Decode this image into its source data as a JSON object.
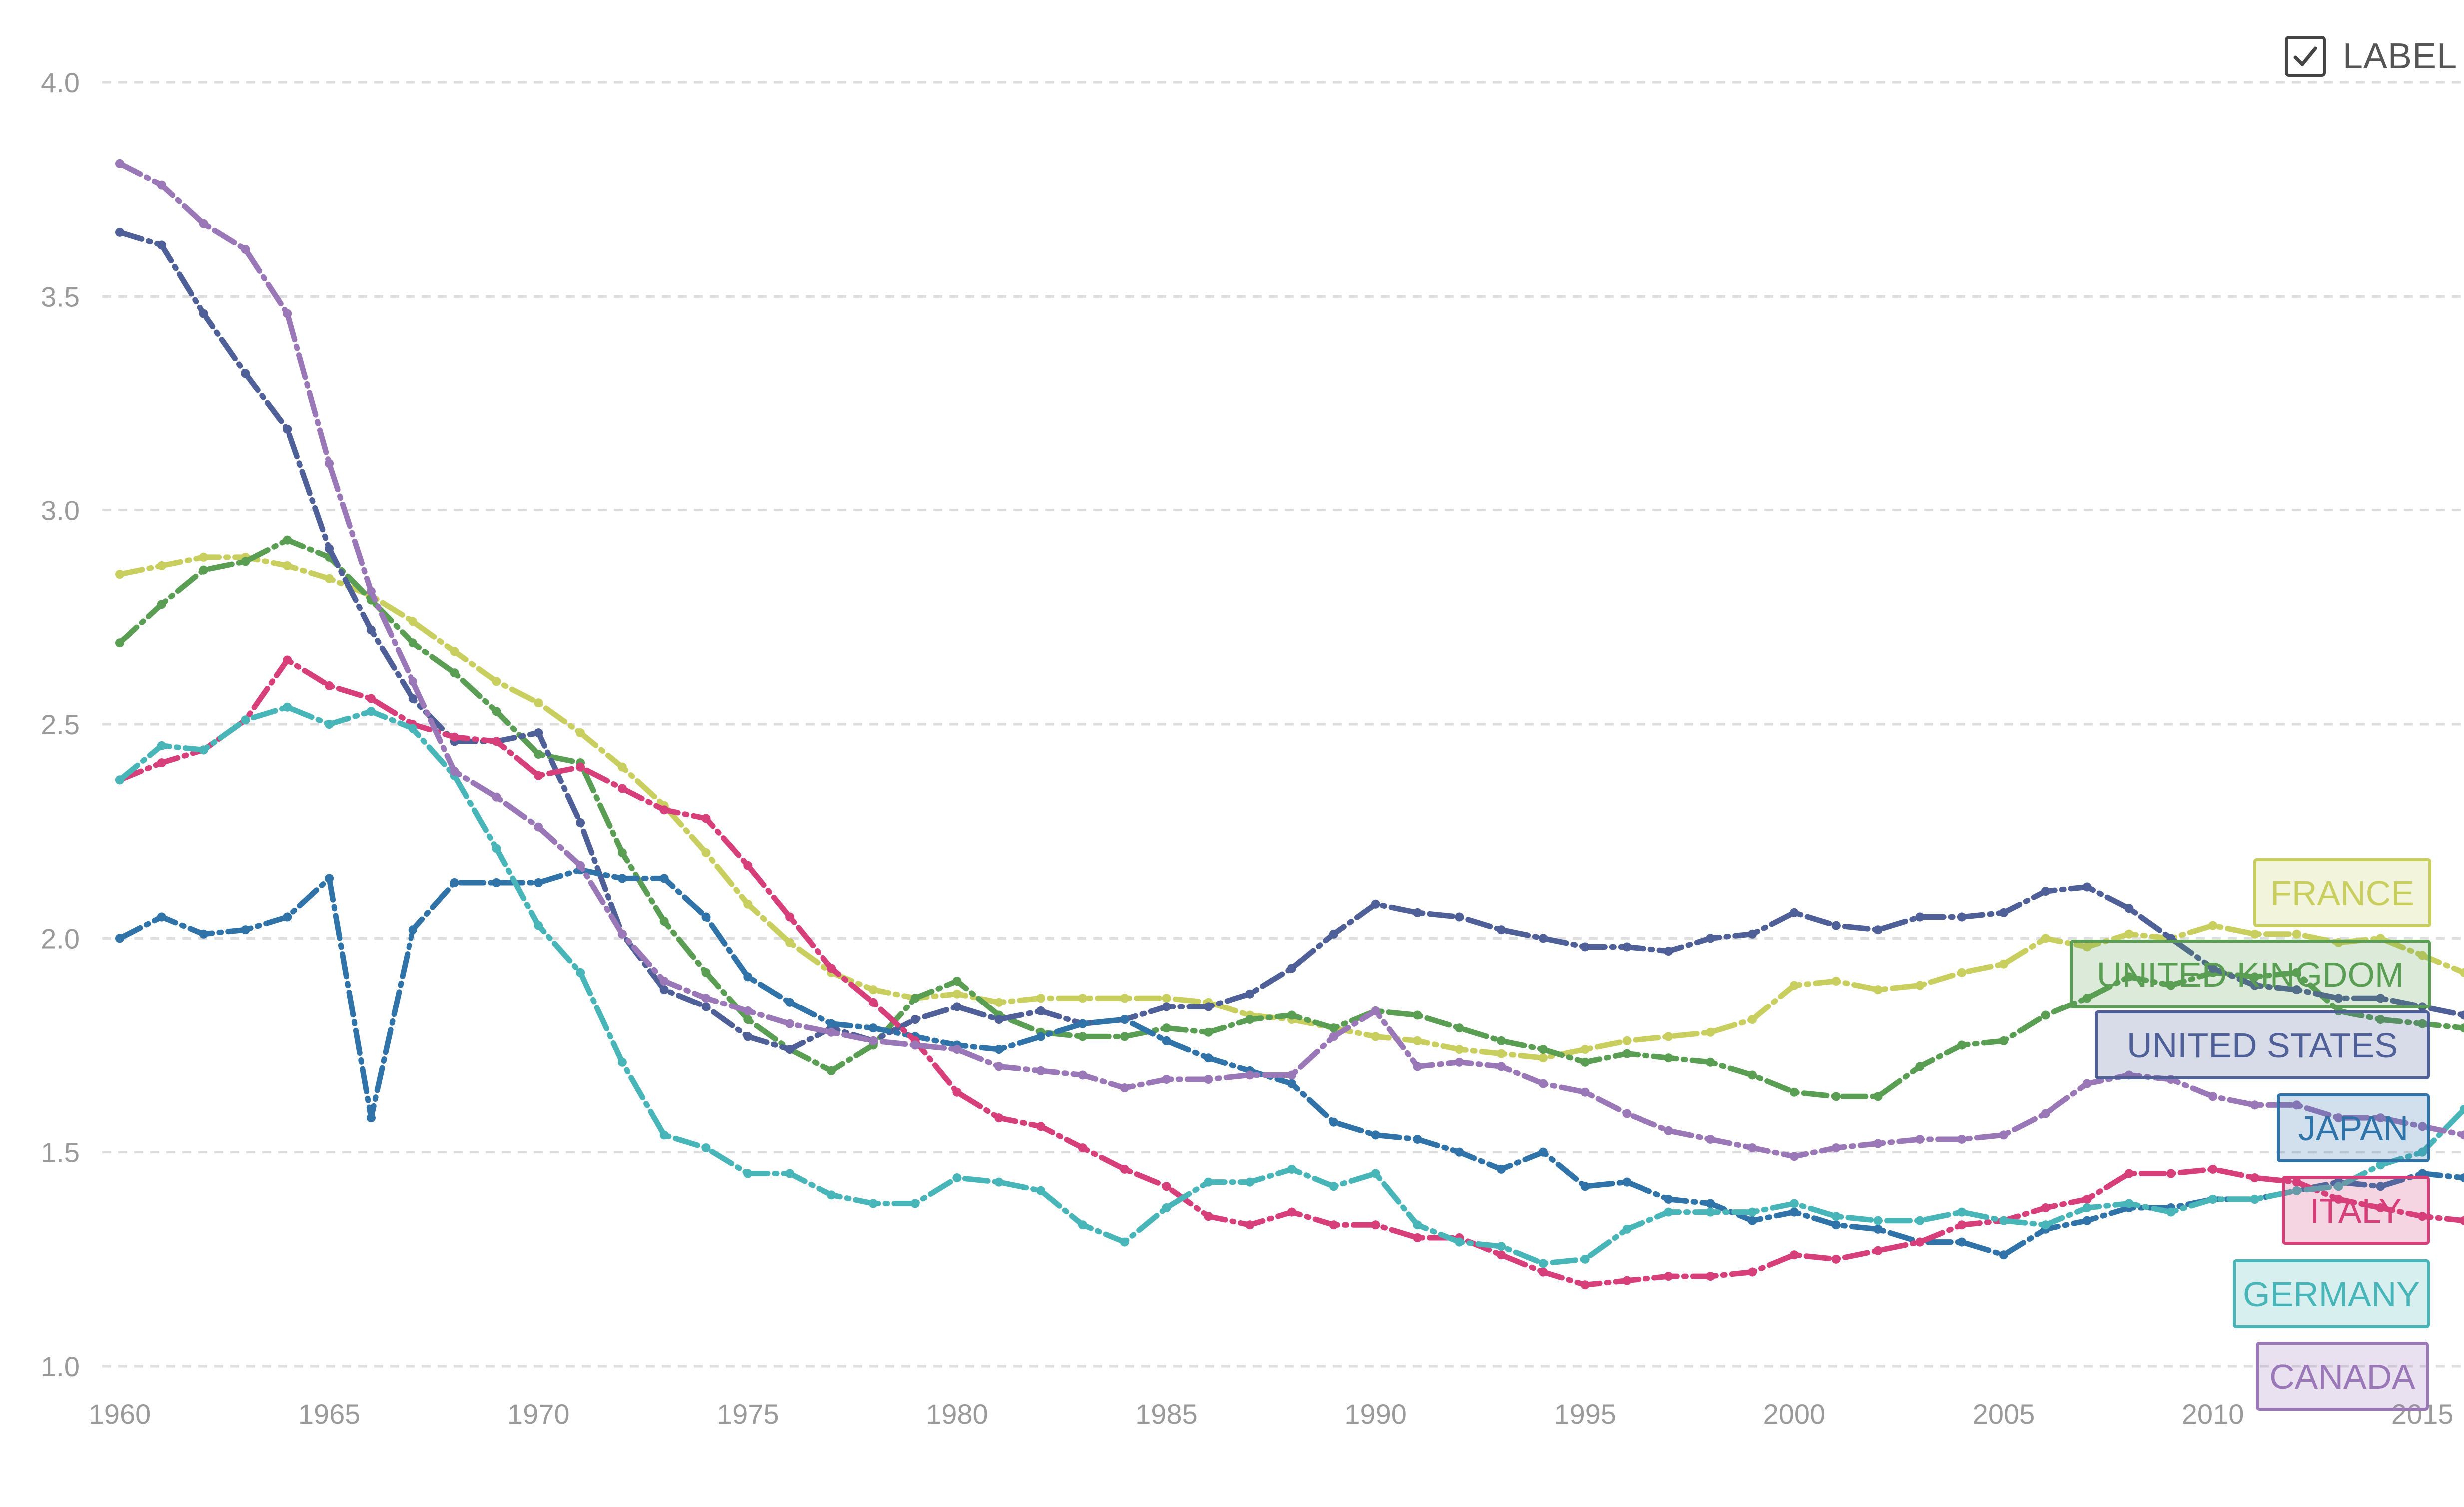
{
  "label_toggle": {
    "text": "LABEL",
    "checked": true,
    "icon": "check-icon"
  },
  "chart_data": {
    "type": "line",
    "title": "",
    "xlabel": "",
    "ylabel": "",
    "xlim": [
      1960,
      2016
    ],
    "ylim": [
      1.0,
      4.0
    ],
    "grid": "horizontal dashed",
    "x_ticks": [
      1960,
      1965,
      1970,
      1975,
      1980,
      1985,
      1990,
      1995,
      2000,
      2005,
      2010,
      2015
    ],
    "x_tick_labels": [
      "1960",
      "1965",
      "1970",
      "1975",
      "1980",
      "1985",
      "1990",
      "1995",
      "2000",
      "2005",
      "2010",
      "2015"
    ],
    "y_ticks": [
      1.0,
      1.5,
      2.0,
      2.5,
      3.0,
      3.5,
      4.0
    ],
    "y_tick_labels": [
      "1.0",
      "1.5",
      "2.0",
      "2.5",
      "3.0",
      "3.5",
      "4.0"
    ],
    "x": [
      1960,
      1961,
      1962,
      1963,
      1964,
      1965,
      1966,
      1967,
      1968,
      1969,
      1970,
      1971,
      1972,
      1973,
      1974,
      1975,
      1976,
      1977,
      1978,
      1979,
      1980,
      1981,
      1982,
      1983,
      1984,
      1985,
      1986,
      1987,
      1988,
      1989,
      1990,
      1991,
      1992,
      1993,
      1994,
      1995,
      1996,
      1997,
      1998,
      1999,
      2000,
      2001,
      2002,
      2003,
      2004,
      2005,
      2006,
      2007,
      2008,
      2009,
      2010,
      2011,
      2012,
      2013,
      2014,
      2015,
      2016
    ],
    "series": [
      {
        "name": "FRANCE",
        "color": "#c8cf5e",
        "values": [
          2.85,
          2.87,
          2.89,
          2.89,
          2.87,
          2.84,
          2.8,
          2.74,
          2.67,
          2.6,
          2.55,
          2.48,
          2.4,
          2.31,
          2.2,
          2.08,
          1.99,
          1.92,
          1.88,
          1.86,
          1.87,
          1.85,
          1.86,
          1.86,
          1.86,
          1.86,
          1.85,
          1.82,
          1.81,
          1.79,
          1.77,
          1.76,
          1.74,
          1.73,
          1.72,
          1.74,
          1.76,
          1.77,
          1.78,
          1.81,
          1.89,
          1.9,
          1.88,
          1.89,
          1.92,
          1.94,
          2.0,
          1.98,
          2.01,
          2.0,
          2.03,
          2.01,
          2.01,
          1.99,
          2.0,
          1.96,
          1.92
        ]
      },
      {
        "name": "UNITED KINGDOM",
        "color": "#5a9e54",
        "values": [
          2.69,
          2.78,
          2.86,
          2.88,
          2.93,
          2.89,
          2.79,
          2.69,
          2.62,
          2.53,
          2.43,
          2.41,
          2.2,
          2.04,
          1.92,
          1.81,
          1.74,
          1.69,
          1.75,
          1.86,
          1.9,
          1.82,
          1.78,
          1.77,
          1.77,
          1.79,
          1.78,
          1.81,
          1.82,
          1.79,
          1.83,
          1.82,
          1.79,
          1.76,
          1.74,
          1.71,
          1.73,
          1.72,
          1.71,
          1.68,
          1.64,
          1.63,
          1.63,
          1.7,
          1.75,
          1.76,
          1.82,
          1.86,
          1.91,
          1.89,
          1.92,
          1.91,
          1.92,
          1.83,
          1.81,
          1.8,
          1.79
        ]
      },
      {
        "name": "UNITED STATES",
        "color": "#4f5f97",
        "values": [
          3.65,
          3.62,
          3.46,
          3.32,
          3.19,
          2.91,
          2.72,
          2.56,
          2.46,
          2.46,
          2.48,
          2.27,
          2.01,
          1.88,
          1.84,
          1.77,
          1.74,
          1.79,
          1.76,
          1.81,
          1.84,
          1.81,
          1.83,
          1.8,
          1.81,
          1.84,
          1.84,
          1.87,
          1.93,
          2.01,
          2.08,
          2.06,
          2.05,
          2.02,
          2.0,
          1.98,
          1.98,
          1.97,
          2.0,
          2.01,
          2.06,
          2.03,
          2.02,
          2.05,
          2.05,
          2.06,
          2.11,
          2.12,
          2.07,
          2.0,
          1.93,
          1.89,
          1.88,
          1.86,
          1.86,
          1.84,
          1.82
        ]
      },
      {
        "name": "JAPAN",
        "color": "#2f73a8",
        "values": [
          2.0,
          2.05,
          2.01,
          2.02,
          2.05,
          2.14,
          1.58,
          2.02,
          2.13,
          2.13,
          2.13,
          2.16,
          2.14,
          2.14,
          2.05,
          1.91,
          1.85,
          1.8,
          1.79,
          1.77,
          1.75,
          1.74,
          1.77,
          1.8,
          1.81,
          1.76,
          1.72,
          1.69,
          1.66,
          1.57,
          1.54,
          1.53,
          1.5,
          1.46,
          1.5,
          1.42,
          1.43,
          1.39,
          1.38,
          1.34,
          1.36,
          1.33,
          1.32,
          1.29,
          1.29,
          1.26,
          1.32,
          1.34,
          1.37,
          1.37,
          1.39,
          1.39,
          1.41,
          1.43,
          1.42,
          1.45,
          1.44
        ]
      },
      {
        "name": "ITALY",
        "color": "#d63f7a",
        "values": [
          2.37,
          2.41,
          2.44,
          2.51,
          2.65,
          2.59,
          2.56,
          2.5,
          2.47,
          2.46,
          2.38,
          2.4,
          2.35,
          2.3,
          2.28,
          2.17,
          2.05,
          1.93,
          1.85,
          1.76,
          1.64,
          1.58,
          1.56,
          1.51,
          1.46,
          1.42,
          1.35,
          1.33,
          1.36,
          1.33,
          1.33,
          1.3,
          1.3,
          1.26,
          1.22,
          1.19,
          1.2,
          1.21,
          1.21,
          1.22,
          1.26,
          1.25,
          1.27,
          1.29,
          1.33,
          1.34,
          1.37,
          1.39,
          1.45,
          1.45,
          1.46,
          1.44,
          1.43,
          1.39,
          1.37,
          1.35,
          1.34
        ]
      },
      {
        "name": "GERMANY",
        "color": "#48b5b8",
        "values": [
          2.37,
          2.45,
          2.44,
          2.51,
          2.54,
          2.5,
          2.53,
          2.49,
          2.38,
          2.21,
          2.03,
          1.92,
          1.71,
          1.54,
          1.51,
          1.45,
          1.45,
          1.4,
          1.38,
          1.38,
          1.44,
          1.43,
          1.41,
          1.33,
          1.29,
          1.37,
          1.43,
          1.43,
          1.46,
          1.42,
          1.45,
          1.33,
          1.29,
          1.28,
          1.24,
          1.25,
          1.32,
          1.36,
          1.36,
          1.36,
          1.38,
          1.35,
          1.34,
          1.34,
          1.36,
          1.34,
          1.33,
          1.37,
          1.38,
          1.36,
          1.39,
          1.39,
          1.41,
          1.42,
          1.47,
          1.5,
          1.6
        ]
      },
      {
        "name": "CANADA",
        "color": "#9a78b8",
        "values": [
          3.81,
          3.76,
          3.67,
          3.61,
          3.46,
          3.11,
          2.81,
          2.6,
          2.39,
          2.33,
          2.26,
          2.17,
          2.01,
          1.9,
          1.86,
          1.83,
          1.8,
          1.78,
          1.76,
          1.75,
          1.74,
          1.7,
          1.69,
          1.68,
          1.65,
          1.67,
          1.67,
          1.68,
          1.68,
          1.77,
          1.83,
          1.7,
          1.71,
          1.7,
          1.66,
          1.64,
          1.59,
          1.55,
          1.53,
          1.51,
          1.49,
          1.51,
          1.52,
          1.53,
          1.53,
          1.54,
          1.59,
          1.66,
          1.68,
          1.67,
          1.63,
          1.61,
          1.61,
          1.58,
          1.58,
          1.56,
          1.54
        ]
      }
    ]
  }
}
